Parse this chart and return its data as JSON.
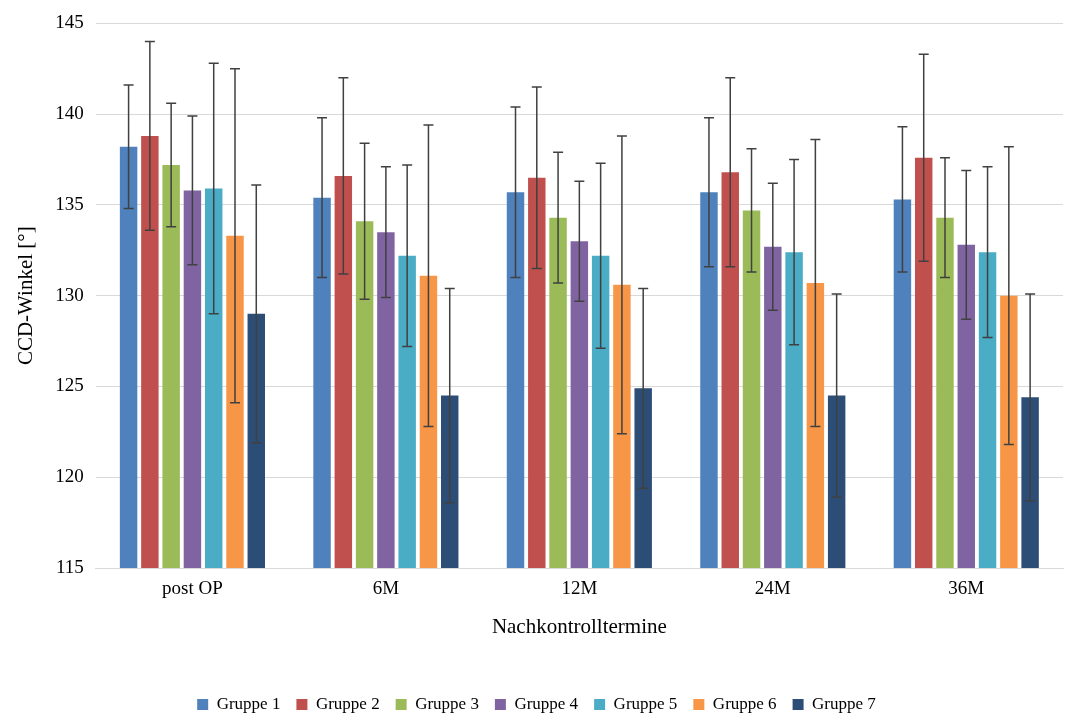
{
  "chart_data": {
    "type": "bar",
    "xlabel": "Nachkontrolltermine",
    "ylabel": "CCD-Winkel [°]",
    "categories": [
      "post OP",
      "6M",
      "12M",
      "24M",
      "36M"
    ],
    "ylim": [
      115,
      145
    ],
    "yticks": [
      115,
      120,
      125,
      130,
      135,
      140,
      145
    ],
    "grid": "y",
    "legend": "bottom",
    "series": [
      {
        "name": "Gruppe 1",
        "color": "#4f81bd",
        "values": [
          138.2,
          135.4,
          135.7,
          135.7,
          135.3
        ],
        "errors": [
          3.4,
          4.4,
          4.7,
          4.1,
          4.0
        ]
      },
      {
        "name": "Gruppe 2",
        "color": "#c0504d",
        "values": [
          138.8,
          136.6,
          136.5,
          136.8,
          137.6
        ],
        "errors": [
          5.2,
          5.4,
          5.0,
          5.2,
          5.7
        ]
      },
      {
        "name": "Gruppe 3",
        "color": "#9bbb59",
        "values": [
          137.2,
          134.1,
          134.3,
          134.7,
          134.3
        ],
        "errors": [
          3.4,
          4.3,
          3.6,
          3.4,
          3.3
        ]
      },
      {
        "name": "Gruppe 4",
        "color": "#8064a2",
        "values": [
          135.8,
          133.5,
          133.0,
          132.7,
          132.8
        ],
        "errors": [
          4.1,
          3.6,
          3.3,
          3.5,
          4.1
        ]
      },
      {
        "name": "Gruppe 5",
        "color": "#4bacc6",
        "values": [
          135.9,
          132.2,
          132.2,
          132.4,
          132.4
        ],
        "errors": [
          6.9,
          5.0,
          5.1,
          5.1,
          4.7
        ]
      },
      {
        "name": "Gruppe 6",
        "color": "#f79646",
        "values": [
          133.3,
          131.1,
          130.6,
          130.7,
          130.0
        ],
        "errors": [
          9.2,
          8.3,
          8.2,
          7.9,
          8.2
        ]
      },
      {
        "name": "Gruppe 7",
        "color": "#2c4d75",
        "values": [
          129.0,
          124.5,
          124.9,
          124.5,
          124.4
        ],
        "errors": [
          7.1,
          5.9,
          5.5,
          5.6,
          5.7
        ]
      }
    ]
  }
}
